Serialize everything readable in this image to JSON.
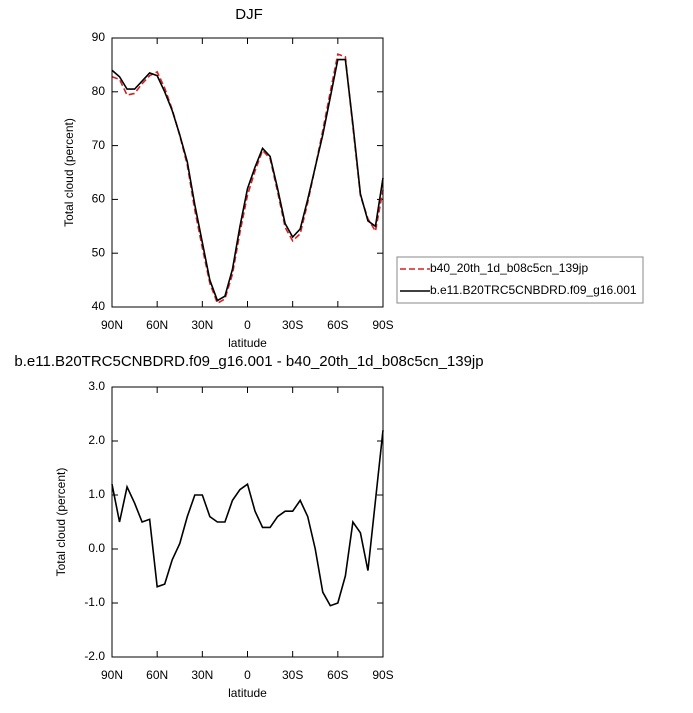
{
  "chart_data": [
    {
      "type": "line",
      "title": "DJF",
      "xlabel": "latitude",
      "ylabel": "Total cloud (percent)",
      "x": [
        90,
        85,
        80,
        75,
        70,
        65,
        60,
        55,
        50,
        45,
        40,
        35,
        30,
        25,
        20,
        15,
        10,
        5,
        0,
        -5,
        -10,
        -15,
        -20,
        -25,
        -30,
        -35,
        -40,
        -45,
        -50,
        -55,
        -60,
        -65,
        -70,
        -75,
        -80,
        -85,
        -90
      ],
      "xlim": [
        90,
        -90
      ],
      "xticks": [
        {
          "value": 90,
          "label": "90N"
        },
        {
          "value": 60,
          "label": "60N"
        },
        {
          "value": 30,
          "label": "30N"
        },
        0,
        {
          "value": -30,
          "label": "30S"
        },
        {
          "value": -60,
          "label": "60S"
        },
        {
          "value": -90,
          "label": "90S"
        }
      ],
      "ylim": [
        40,
        90
      ],
      "yticks": [
        40,
        50,
        60,
        70,
        80,
        90
      ],
      "legend": "right",
      "series": [
        {
          "name": "b40_20th_1d_b08c5cn_139jp",
          "color": "#d62020",
          "dashed": true,
          "values": [
            82.8,
            82.3,
            79.4,
            79.7,
            81.5,
            83.0,
            83.7,
            80.7,
            76.7,
            71.9,
            66.4,
            58,
            51,
            44.4,
            40.7,
            41.5,
            46.1,
            53.9,
            60.8,
            65.3,
            69.1,
            67.6,
            61.4,
            54.8,
            52.3,
            53.6,
            59.4,
            66,
            72.8,
            80,
            87,
            86.5,
            73.5,
            60.7,
            56.4,
            54.1,
            61.8
          ]
        },
        {
          "name": "b.e11.B20TRC5CNBDRD.f09_g16.001",
          "color": "#000000",
          "dashed": false,
          "values": [
            84,
            82.8,
            80.5,
            80.5,
            82,
            83.5,
            83,
            80,
            76.5,
            72,
            67,
            59,
            52,
            45,
            41.2,
            42,
            47,
            55,
            62,
            66,
            69.5,
            68,
            62,
            55.5,
            53,
            54.5,
            60,
            66,
            72,
            79,
            86,
            86,
            74,
            61,
            56,
            55,
            64
          ]
        }
      ]
    },
    {
      "type": "line",
      "title": "b.e11.B20TRC5CNBDRD.f09_g16.001 - b40_20th_1d_b08c5cn_139jp",
      "xlabel": "latitude",
      "ylabel": "Total cloud (percent)",
      "x": [
        90,
        85,
        80,
        75,
        70,
        65,
        60,
        55,
        50,
        45,
        40,
        35,
        30,
        25,
        20,
        15,
        10,
        5,
        0,
        -5,
        -10,
        -15,
        -20,
        -25,
        -30,
        -35,
        -40,
        -45,
        -50,
        -55,
        -60,
        -65,
        -70,
        -75,
        -80,
        -85,
        -90
      ],
      "xlim": [
        90,
        -90
      ],
      "xticks": [
        {
          "value": 90,
          "label": "90N"
        },
        {
          "value": 60,
          "label": "60N"
        },
        {
          "value": 30,
          "label": "30N"
        },
        0,
        {
          "value": -30,
          "label": "30S"
        },
        {
          "value": -60,
          "label": "60S"
        },
        {
          "value": -90,
          "label": "90S"
        }
      ],
      "ylim": [
        -2,
        3
      ],
      "yticks": [
        {
          "value": -2,
          "label": "-2.0"
        },
        {
          "value": -1,
          "label": "-1.0"
        },
        {
          "value": 0,
          "label": "0.0"
        },
        {
          "value": 1,
          "label": "1.0"
        },
        {
          "value": 2,
          "label": "2.0"
        },
        {
          "value": 3,
          "label": "3.0"
        }
      ],
      "color": "#000000",
      "values": [
        1.2,
        0.5,
        1.15,
        0.85,
        0.5,
        0.55,
        -0.7,
        -0.65,
        -0.2,
        0.1,
        0.6,
        1.0,
        1.0,
        0.6,
        0.5,
        0.5,
        0.9,
        1.1,
        1.2,
        0.7,
        0.4,
        0.4,
        0.6,
        0.7,
        0.7,
        0.9,
        0.6,
        0.0,
        -0.8,
        -1.05,
        -1.0,
        -0.5,
        0.5,
        0.3,
        -0.4,
        0.9,
        2.2
      ]
    }
  ]
}
